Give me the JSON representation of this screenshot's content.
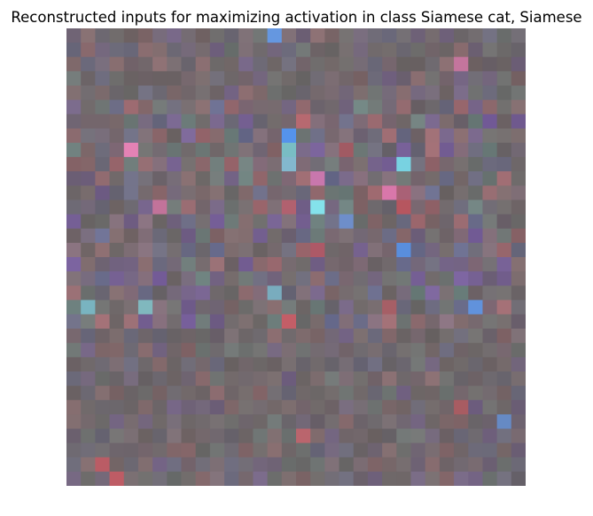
{
  "figure": {
    "title": "Reconstructed inputs for maximizing activation in class Siamese cat, Siamese"
  },
  "image": {
    "description_tag": "activation-maximization-reconstruction",
    "style": "pixelated noise mosaic",
    "grid_cells": 32,
    "palette": {
      "base_gray": "#6f6868",
      "mauve": "#8a6f80",
      "slate_blue": "#6a6f98",
      "dusty_rose": "#a86a72",
      "teal_gray": "#6e8784",
      "violet": "#7a5fa6",
      "bright_blue": "#5aa0ff",
      "cyan": "#7fe6f0",
      "pink": "#e77db4",
      "red": "#c85a64"
    }
  }
}
